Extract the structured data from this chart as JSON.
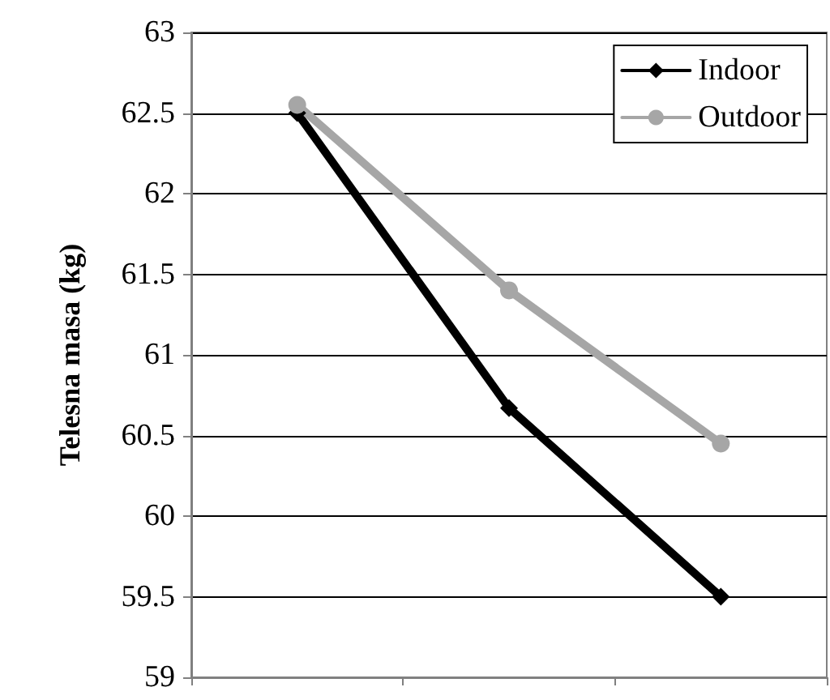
{
  "chart_data": {
    "type": "line",
    "ylabel": "Telesna masa (kg)",
    "categories": [
      null,
      null,
      null
    ],
    "series": [
      {
        "name": "Indoor",
        "color": "#000000",
        "marker": "diamond",
        "values": [
          62.5,
          60.67,
          59.5
        ]
      },
      {
        "name": "Outdoor",
        "color": "#a6a6a6",
        "marker": "circle",
        "values": [
          62.55,
          61.4,
          60.45
        ]
      }
    ],
    "ylim": [
      59,
      63
    ],
    "yticks": [
      59,
      59.5,
      60,
      60.5,
      61,
      61.5,
      62,
      62.5,
      63
    ],
    "grid": "y",
    "legend": "top right"
  }
}
